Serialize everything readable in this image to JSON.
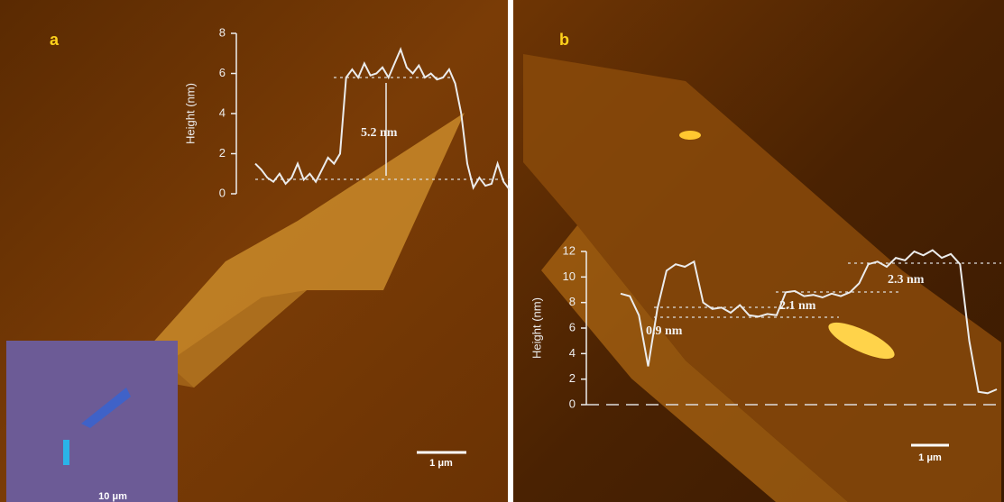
{
  "chart_data": [
    {
      "type": "line",
      "panel_label": "a",
      "ylabel": "Height (nm)",
      "ylim": [
        0,
        8
      ],
      "yticks": [
        0,
        2,
        4,
        6,
        8
      ],
      "color": "#ececec",
      "values": [
        1.5,
        1.2,
        0.8,
        0.6,
        1.0,
        0.5,
        0.8,
        1.5,
        0.7,
        1.0,
        0.6,
        1.2,
        1.8,
        1.5,
        2.0,
        5.8,
        6.2,
        5.8,
        6.5,
        5.9,
        6.0,
        6.3,
        5.8,
        6.5,
        7.2,
        6.3,
        6.0,
        6.4,
        5.8,
        6.0,
        5.7,
        5.8,
        6.2,
        5.5,
        4.0,
        1.5,
        0.3,
        0.8,
        0.4,
        0.5,
        1.5,
        0.6,
        0.2
      ],
      "annotations": [
        "5.2 nm"
      ],
      "scale_bar": "1 μm",
      "inset_scale_bar": "10 μm"
    },
    {
      "type": "line",
      "panel_label": "b",
      "ylabel": "Height (nm)",
      "ylim": [
        0,
        12
      ],
      "yticks": [
        0,
        2,
        4,
        6,
        8,
        10,
        12
      ],
      "color": "#ececec",
      "values": [
        8.7,
        8.5,
        7.0,
        3.0,
        7.5,
        10.5,
        11.0,
        10.8,
        11.2,
        8.0,
        7.5,
        7.6,
        7.2,
        7.8,
        7.0,
        6.9,
        7.1,
        7.0,
        8.8,
        8.9,
        8.5,
        8.6,
        8.4,
        8.7,
        8.5,
        8.8,
        9.5,
        11.0,
        11.2,
        10.8,
        11.5,
        11.3,
        12.0,
        11.7,
        12.1,
        11.5,
        11.8,
        11.0,
        5.0,
        1.0,
        0.9,
        1.2
      ],
      "annotations": [
        "0.9 nm",
        "2.1 nm",
        "2.3 nm"
      ],
      "scale_bar": "1 μm"
    }
  ]
}
